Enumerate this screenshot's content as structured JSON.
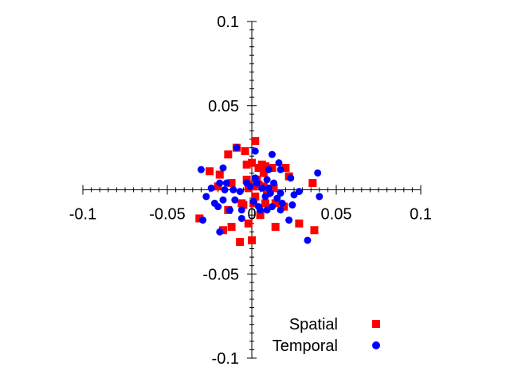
{
  "chart_data": {
    "type": "scatter",
    "title": "",
    "xlabel": "",
    "ylabel": "",
    "xlim": [
      -0.1,
      0.1
    ],
    "ylim": [
      -0.1,
      0.1
    ],
    "x_ticks": [
      "-0.1",
      "-0.05",
      "0",
      "0.05",
      "0.1"
    ],
    "y_ticks": [
      "0.1",
      "0.05",
      "-0.05",
      "-0.1"
    ],
    "axes_style": "centered-cross",
    "grid": false,
    "legend_position": "bottom-right",
    "series": [
      {
        "name": "Spatial",
        "color": "#ff0000",
        "marker": "square",
        "points": [
          [
            0.002,
            0.029
          ],
          [
            -0.004,
            0.023
          ],
          [
            -0.009,
            0.025
          ],
          [
            -0.014,
            0.021
          ],
          [
            -0.025,
            0.011
          ],
          [
            -0.019,
            0.009
          ],
          [
            -0.012,
            0.004
          ],
          [
            -0.02,
            0.002
          ],
          [
            -0.003,
            0.015
          ],
          [
            0.0,
            0.016
          ],
          [
            0.004,
            0.013
          ],
          [
            0.006,
            0.015
          ],
          [
            0.008,
            0.014
          ],
          [
            0.012,
            0.013
          ],
          [
            0.007,
            0.01
          ],
          [
            0.02,
            0.013
          ],
          [
            0.022,
            0.008
          ],
          [
            0.036,
            0.004
          ],
          [
            0.003,
            0.006
          ],
          [
            -0.003,
            0.006
          ],
          [
            -0.002,
            0.001
          ],
          [
            0.001,
            0.002
          ],
          [
            0.004,
            0.003
          ],
          [
            0.007,
            0.002
          ],
          [
            0.013,
            0.001
          ],
          [
            0.009,
            -0.002
          ],
          [
            0.002,
            -0.004
          ],
          [
            -0.006,
            -0.008
          ],
          [
            0.008,
            -0.008
          ],
          [
            0.005,
            -0.015
          ],
          [
            0.014,
            -0.008
          ],
          [
            0.019,
            -0.01
          ],
          [
            -0.014,
            -0.012
          ],
          [
            -0.017,
            -0.024
          ],
          [
            -0.031,
            -0.017
          ],
          [
            -0.012,
            -0.022
          ],
          [
            -0.007,
            -0.031
          ],
          [
            0.0,
            -0.03
          ],
          [
            -0.002,
            -0.02
          ],
          [
            0.014,
            -0.022
          ],
          [
            0.028,
            -0.02
          ],
          [
            0.037,
            -0.024
          ],
          [
            -0.005,
            -0.009
          ],
          [
            0.001,
            -0.008
          ]
        ]
      },
      {
        "name": "Temporal",
        "color": "#0000ff",
        "marker": "circle",
        "points": [
          [
            -0.009,
            0.025
          ],
          [
            0.002,
            0.023
          ],
          [
            0.012,
            0.021
          ],
          [
            0.016,
            0.016
          ],
          [
            -0.03,
            0.012
          ],
          [
            -0.017,
            0.013
          ],
          [
            0.01,
            0.012
          ],
          [
            0.017,
            0.012
          ],
          [
            0.039,
            0.01
          ],
          [
            0.002,
            0.007
          ],
          [
            0.013,
            0.004
          ],
          [
            -0.024,
            0.001
          ],
          [
            -0.016,
            0.0
          ],
          [
            -0.011,
            0.0
          ],
          [
            -0.007,
            -0.001
          ],
          [
            -0.001,
            0.002
          ],
          [
            0.006,
            0.001
          ],
          [
            0.01,
            0.001
          ],
          [
            -0.019,
            0.004
          ],
          [
            -0.015,
            0.004
          ],
          [
            -0.003,
            0.004
          ],
          [
            0.003,
            0.004
          ],
          [
            0.009,
            0.006
          ],
          [
            0.017,
            -0.002
          ],
          [
            0.023,
            0.007
          ],
          [
            0.025,
            -0.003
          ],
          [
            0.028,
            -0.001
          ],
          [
            -0.027,
            -0.004
          ],
          [
            -0.022,
            -0.008
          ],
          [
            -0.017,
            -0.006
          ],
          [
            -0.02,
            -0.01
          ],
          [
            -0.013,
            -0.012
          ],
          [
            0.008,
            -0.004
          ],
          [
            0.011,
            -0.002
          ],
          [
            0.015,
            -0.005
          ],
          [
            0.018,
            -0.008
          ],
          [
            0.024,
            -0.009
          ],
          [
            0.04,
            -0.004
          ],
          [
            -0.029,
            -0.018
          ],
          [
            -0.019,
            -0.025
          ],
          [
            -0.006,
            -0.017
          ],
          [
            0.005,
            -0.012
          ],
          [
            0.009,
            -0.012
          ],
          [
            0.012,
            -0.01
          ],
          [
            0.017,
            -0.012
          ],
          [
            0.022,
            -0.018
          ],
          [
            0.033,
            -0.03
          ],
          [
            -0.01,
            -0.006
          ],
          [
            0.001,
            -0.007
          ],
          [
            0.004,
            -0.01
          ],
          [
            -0.006,
            -0.012
          ]
        ]
      }
    ]
  }
}
